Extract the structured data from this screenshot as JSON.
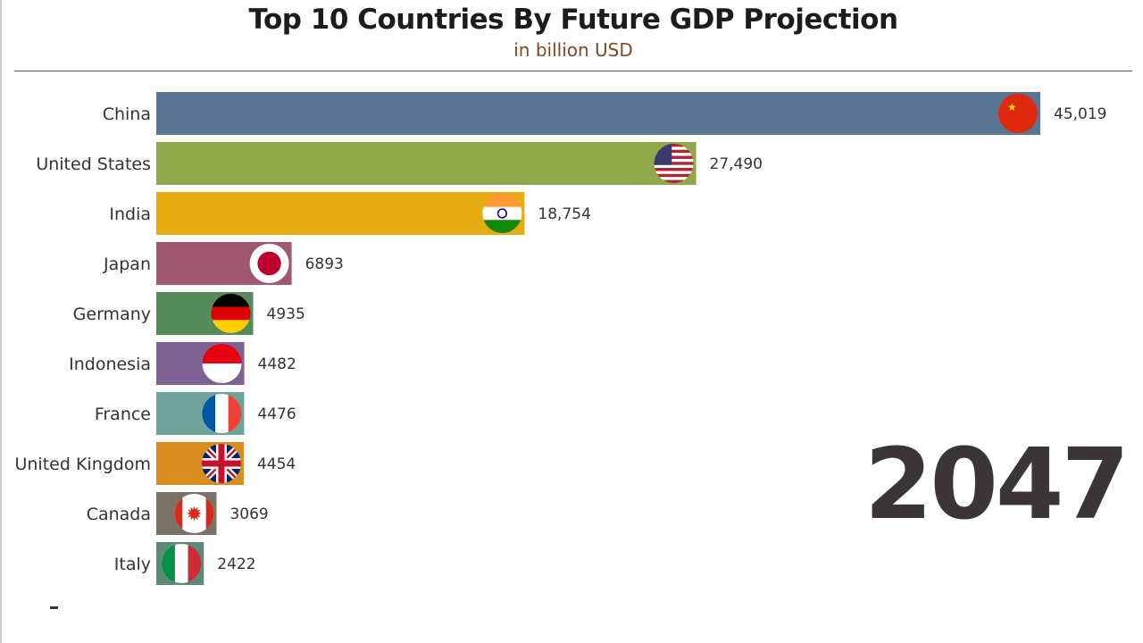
{
  "chart_data": {
    "type": "bar",
    "orientation": "horizontal",
    "title": "Top 10 Countries By Future GDP Projection",
    "subtitle": "in billion USD",
    "period_label": "2047",
    "xlim": [
      0,
      45019
    ],
    "categories": [
      "China",
      "United States",
      "India",
      "Japan",
      "Germany",
      "Indonesia",
      "France",
      "United Kingdom",
      "Canada",
      "Italy"
    ],
    "values": [
      45019,
      27490,
      18754,
      6893,
      4935,
      4482,
      4476,
      4454,
      3069,
      2422
    ],
    "value_labels": [
      "45,019",
      "27,490",
      "18,754",
      "6893",
      "4935",
      "4482",
      "4476",
      "4454",
      "3069",
      "2422"
    ],
    "colors": [
      "#5a7591",
      "#8fa94a",
      "#e8ac13",
      "#a05870",
      "#558a5a",
      "#7e6294",
      "#6fa39b",
      "#d88c1d",
      "#7b7267",
      "#5b8b79"
    ],
    "flags": [
      "china-flag",
      "us-flag",
      "india-flag",
      "japan-flag",
      "germany-flag",
      "indonesia-flag",
      "france-flag",
      "uk-flag",
      "canada-flag",
      "italy-flag"
    ]
  }
}
